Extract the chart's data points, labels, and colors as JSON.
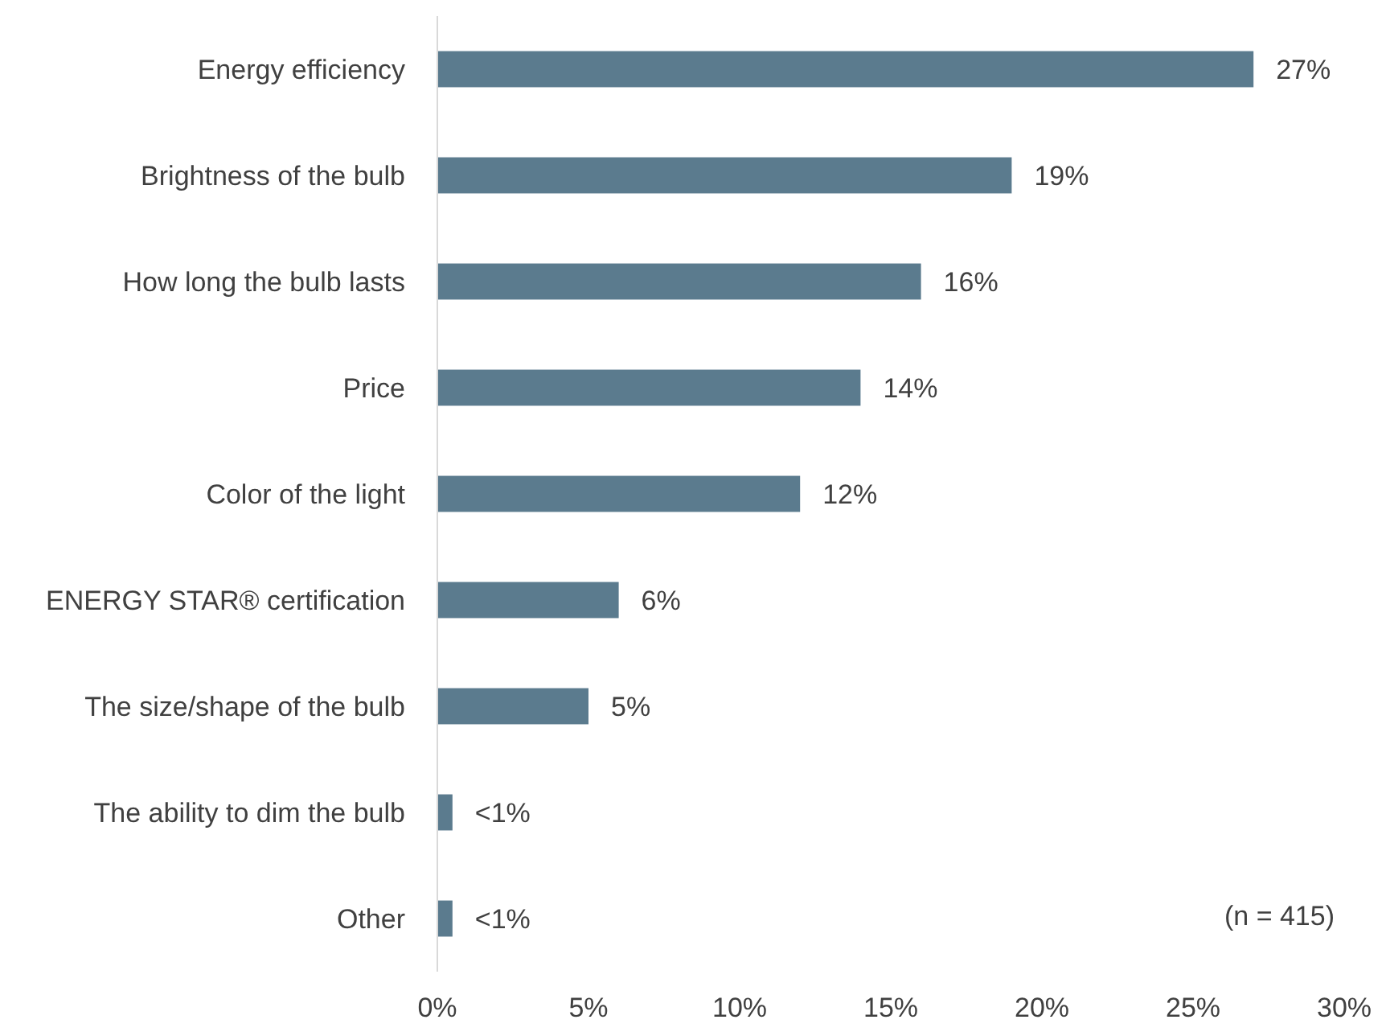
{
  "chart_data": {
    "type": "bar",
    "orientation": "horizontal",
    "categories": [
      "Energy efficiency",
      "Brightness of the bulb",
      "How long the bulb lasts",
      "Price",
      "Color of the light",
      "ENERGY STAR® certification",
      "The size/shape of the bulb",
      "The ability to dim the bulb",
      "Other"
    ],
    "values": [
      27,
      19,
      16,
      14,
      12,
      6,
      5,
      0.5,
      0.5
    ],
    "value_labels": [
      "27%",
      "19%",
      "16%",
      "14%",
      "12%",
      "6%",
      "5%",
      "<1%",
      "<1%"
    ],
    "color": "#5b7b8e",
    "xlim": [
      0,
      30
    ],
    "xticks": [
      {
        "value": 0,
        "label": "0%"
      },
      {
        "value": 5,
        "label": "5%"
      },
      {
        "value": 10,
        "label": "10%"
      },
      {
        "value": 15,
        "label": "15%"
      },
      {
        "value": 20,
        "label": "20%"
      },
      {
        "value": 25,
        "label": "25%"
      },
      {
        "value": 30,
        "label": "30%"
      }
    ],
    "annotations": [
      "(n = 415)"
    ]
  }
}
